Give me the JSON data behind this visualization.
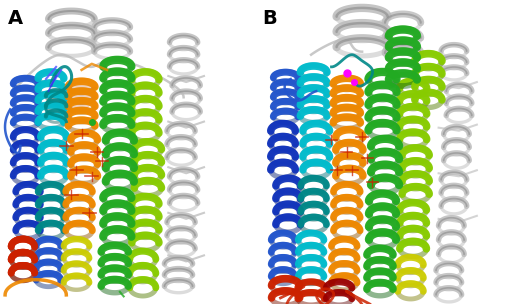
{
  "figure_width": 5.1,
  "figure_height": 3.04,
  "dpi": 100,
  "background_color": "#ffffff",
  "panel_A_label": "A",
  "panel_B_label": "B",
  "label_fontsize": 14,
  "label_fontweight": "bold",
  "label_color": "#000000",
  "colors": {
    "red": "#cc2200",
    "orange": "#ee8800",
    "yellow": "#cccc00",
    "lime": "#88cc00",
    "green": "#22aa22",
    "cyan": "#00bbcc",
    "teal": "#008888",
    "blue": "#2255cc",
    "dark_blue": "#1133bb",
    "navy": "#001199",
    "salmon": "#cc9977",
    "gray_dark": "#888888",
    "gray": "#aaaaaa",
    "gray_light": "#cccccc",
    "white": "#ffffff",
    "dark_red": "#990000",
    "magenta": "#ff00ff"
  }
}
